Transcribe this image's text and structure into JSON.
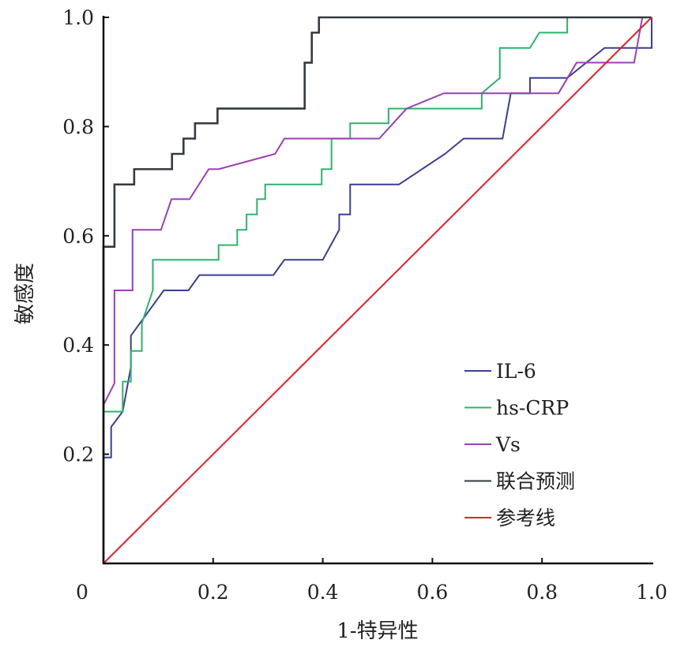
{
  "chart_data": {
    "type": "line",
    "title": "",
    "xlabel": "1-特异性",
    "ylabel": "敏感度",
    "xlim": [
      0,
      1
    ],
    "ylim": [
      0,
      1
    ],
    "x_ticks": [
      "0",
      "0.2",
      "0.4",
      "0.6",
      "0.8",
      "1.0"
    ],
    "y_ticks": [
      "0.2",
      "0.4",
      "0.6",
      "0.8",
      "1.0"
    ],
    "legend_position": "bottom-right",
    "series": [
      {
        "name": "IL-6",
        "color": "#3b3f8f",
        "points": [
          [
            0,
            0
          ],
          [
            0,
            0.194
          ],
          [
            0.014,
            0.194
          ],
          [
            0.014,
            0.25
          ],
          [
            0.035,
            0.278
          ],
          [
            0.05,
            0.36
          ],
          [
            0.05,
            0.417
          ],
          [
            0.11,
            0.5
          ],
          [
            0.155,
            0.5
          ],
          [
            0.175,
            0.528
          ],
          [
            0.31,
            0.528
          ],
          [
            0.33,
            0.556
          ],
          [
            0.4,
            0.556
          ],
          [
            0.43,
            0.611
          ],
          [
            0.43,
            0.639
          ],
          [
            0.45,
            0.639
          ],
          [
            0.45,
            0.694
          ],
          [
            0.539,
            0.694
          ],
          [
            0.623,
            0.75
          ],
          [
            0.657,
            0.778
          ],
          [
            0.728,
            0.778
          ],
          [
            0.743,
            0.861
          ],
          [
            0.778,
            0.861
          ],
          [
            0.778,
            0.889
          ],
          [
            0.846,
            0.889
          ],
          [
            0.914,
            0.944
          ],
          [
            1,
            0.944
          ],
          [
            1,
            1
          ]
        ]
      },
      {
        "name": "hs-CRP",
        "color": "#2db36b",
        "points": [
          [
            0,
            0
          ],
          [
            0,
            0.278
          ],
          [
            0.035,
            0.278
          ],
          [
            0.035,
            0.333
          ],
          [
            0.05,
            0.333
          ],
          [
            0.05,
            0.389
          ],
          [
            0.07,
            0.389
          ],
          [
            0.07,
            0.44
          ],
          [
            0.09,
            0.5
          ],
          [
            0.09,
            0.556
          ],
          [
            0.21,
            0.556
          ],
          [
            0.21,
            0.583
          ],
          [
            0.244,
            0.583
          ],
          [
            0.244,
            0.611
          ],
          [
            0.261,
            0.611
          ],
          [
            0.261,
            0.639
          ],
          [
            0.28,
            0.639
          ],
          [
            0.28,
            0.667
          ],
          [
            0.295,
            0.667
          ],
          [
            0.295,
            0.694
          ],
          [
            0.398,
            0.694
          ],
          [
            0.398,
            0.722
          ],
          [
            0.416,
            0.722
          ],
          [
            0.416,
            0.778
          ],
          [
            0.45,
            0.778
          ],
          [
            0.45,
            0.806
          ],
          [
            0.52,
            0.806
          ],
          [
            0.52,
            0.833
          ],
          [
            0.69,
            0.833
          ],
          [
            0.69,
            0.861
          ],
          [
            0.723,
            0.889
          ],
          [
            0.723,
            0.944
          ],
          [
            0.778,
            0.944
          ],
          [
            0.795,
            0.972
          ],
          [
            0.846,
            0.972
          ],
          [
            0.846,
            1
          ],
          [
            1,
            1
          ]
        ]
      },
      {
        "name": "Vs",
        "color": "#9b3fb5",
        "points": [
          [
            0,
            0
          ],
          [
            0,
            0.29
          ],
          [
            0.02,
            0.33
          ],
          [
            0.02,
            0.5
          ],
          [
            0.053,
            0.5
          ],
          [
            0.053,
            0.611
          ],
          [
            0.105,
            0.611
          ],
          [
            0.124,
            0.667
          ],
          [
            0.157,
            0.667
          ],
          [
            0.192,
            0.722
          ],
          [
            0.21,
            0.722
          ],
          [
            0.313,
            0.75
          ],
          [
            0.33,
            0.778
          ],
          [
            0.503,
            0.778
          ],
          [
            0.553,
            0.833
          ],
          [
            0.621,
            0.861
          ],
          [
            0.83,
            0.861
          ],
          [
            0.863,
            0.917
          ],
          [
            0.968,
            0.917
          ],
          [
            0.983,
            1
          ],
          [
            1,
            1
          ]
        ]
      },
      {
        "name": "联合预测",
        "color": "#333a40",
        "points": [
          [
            0,
            0
          ],
          [
            0,
            0.58
          ],
          [
            0.02,
            0.58
          ],
          [
            0.02,
            0.694
          ],
          [
            0.056,
            0.694
          ],
          [
            0.056,
            0.722
          ],
          [
            0.125,
            0.722
          ],
          [
            0.125,
            0.75
          ],
          [
            0.146,
            0.75
          ],
          [
            0.146,
            0.778
          ],
          [
            0.167,
            0.778
          ],
          [
            0.167,
            0.806
          ],
          [
            0.208,
            0.806
          ],
          [
            0.208,
            0.833
          ],
          [
            0.367,
            0.833
          ],
          [
            0.367,
            0.917
          ],
          [
            0.38,
            0.917
          ],
          [
            0.38,
            0.972
          ],
          [
            0.393,
            0.972
          ],
          [
            0.393,
            1
          ],
          [
            1,
            1
          ]
        ]
      },
      {
        "name": "参考线",
        "color": "#e8202a",
        "points": [
          [
            0,
            0
          ],
          [
            1,
            1
          ]
        ]
      }
    ]
  }
}
